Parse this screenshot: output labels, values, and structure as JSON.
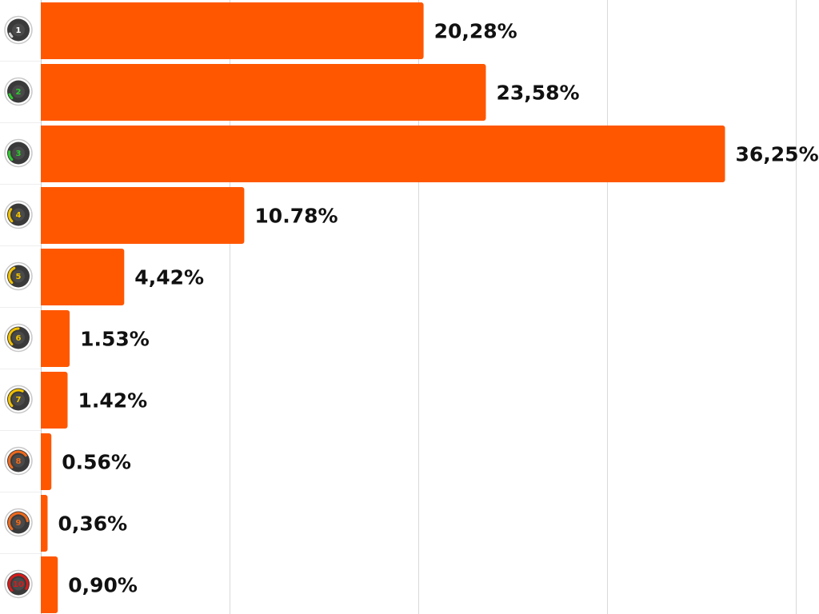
{
  "colors": {
    "bar": "#ff5700",
    "grid": "#d9d9d9",
    "row_sep": "#eeeeee",
    "text": "#111111",
    "gauge_ring": "#3a3a3a",
    "gauge_track": "#c8c8c8"
  },
  "chart_data": {
    "type": "bar",
    "orientation": "horizontal",
    "xlim": [
      0,
      40
    ],
    "grid": true,
    "categories": [
      {
        "rank": "1",
        "gauge_color": "#d6d6d6",
        "gauge_level": 0.0
      },
      {
        "rank": "2",
        "gauge_color": "#2ecc2e",
        "gauge_level": 0.1
      },
      {
        "rank": "3",
        "gauge_color": "#2ecc2e",
        "gauge_level": 0.2
      },
      {
        "rank": "4",
        "gauge_color": "#f2c200",
        "gauge_level": 0.3
      },
      {
        "rank": "5",
        "gauge_color": "#f2c200",
        "gauge_level": 0.4
      },
      {
        "rank": "6",
        "gauge_color": "#f2c200",
        "gauge_level": 0.5
      },
      {
        "rank": "7",
        "gauge_color": "#f2c200",
        "gauge_level": 0.6
      },
      {
        "rank": "8",
        "gauge_color": "#f06a1c",
        "gauge_level": 0.7
      },
      {
        "rank": "9",
        "gauge_color": "#f06a1c",
        "gauge_level": 0.8
      },
      {
        "rank": "10",
        "gauge_color": "#d81b1b",
        "gauge_level": 0.95
      }
    ],
    "values": [
      20.28,
      23.58,
      36.25,
      10.78,
      4.42,
      1.53,
      1.42,
      0.56,
      0.36,
      0.9
    ],
    "value_labels": [
      "20,28%",
      "23,58%",
      "36,25%",
      "10.78%",
      "4,42%",
      "1.53%",
      "1.42%",
      "0.56%",
      "0,36%",
      "0,90%"
    ]
  }
}
